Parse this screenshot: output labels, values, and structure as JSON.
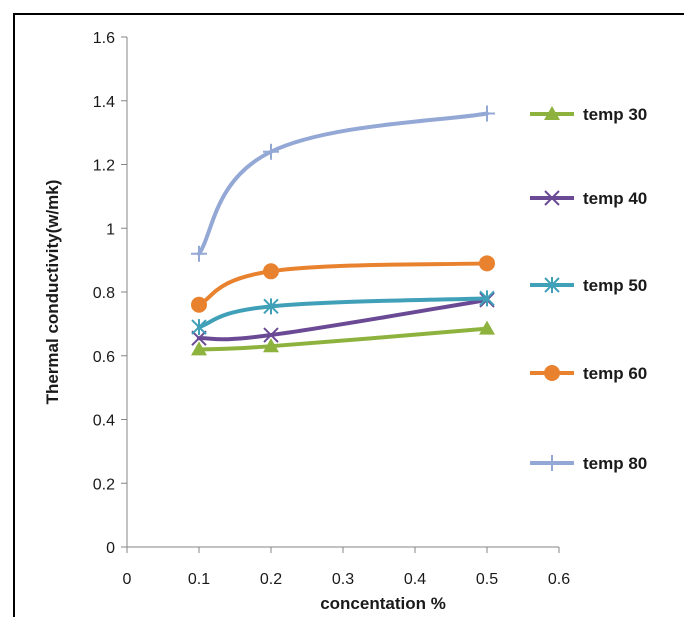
{
  "chart_data": {
    "type": "line",
    "xlabel": "concentation %",
    "ylabel": "Thermal conductivity(w/mk)",
    "xlim": [
      0,
      0.6
    ],
    "ylim": [
      0,
      1.6
    ],
    "x_ticks": [
      "0",
      "0.1",
      "0.2",
      "0.3",
      "0.4",
      "0.5",
      "0.6"
    ],
    "y_ticks": [
      "0",
      "0.2",
      "0.4",
      "0.6",
      "0.8",
      "1",
      "1.2",
      "1.4",
      "1.6"
    ],
    "grid": false,
    "legend_position": "right",
    "x": [
      0.1,
      0.2,
      0.5
    ],
    "series": [
      {
        "name": "temp  30",
        "values": [
          0.62,
          0.63,
          0.685
        ],
        "color": "#8db33e",
        "marker": "triangle"
      },
      {
        "name": "temp  40",
        "values": [
          0.655,
          0.665,
          0.775
        ],
        "color": "#6a4a94",
        "marker": "x"
      },
      {
        "name": "temp  50",
        "values": [
          0.69,
          0.755,
          0.78
        ],
        "color": "#3fa0b8",
        "marker": "asterisk"
      },
      {
        "name": "temp  60",
        "values": [
          0.76,
          0.865,
          0.89
        ],
        "color": "#e8822f",
        "marker": "circle"
      },
      {
        "name": "temp 80",
        "values": [
          0.92,
          1.24,
          1.36
        ],
        "color": "#94a8d6",
        "marker": "plus"
      }
    ]
  }
}
